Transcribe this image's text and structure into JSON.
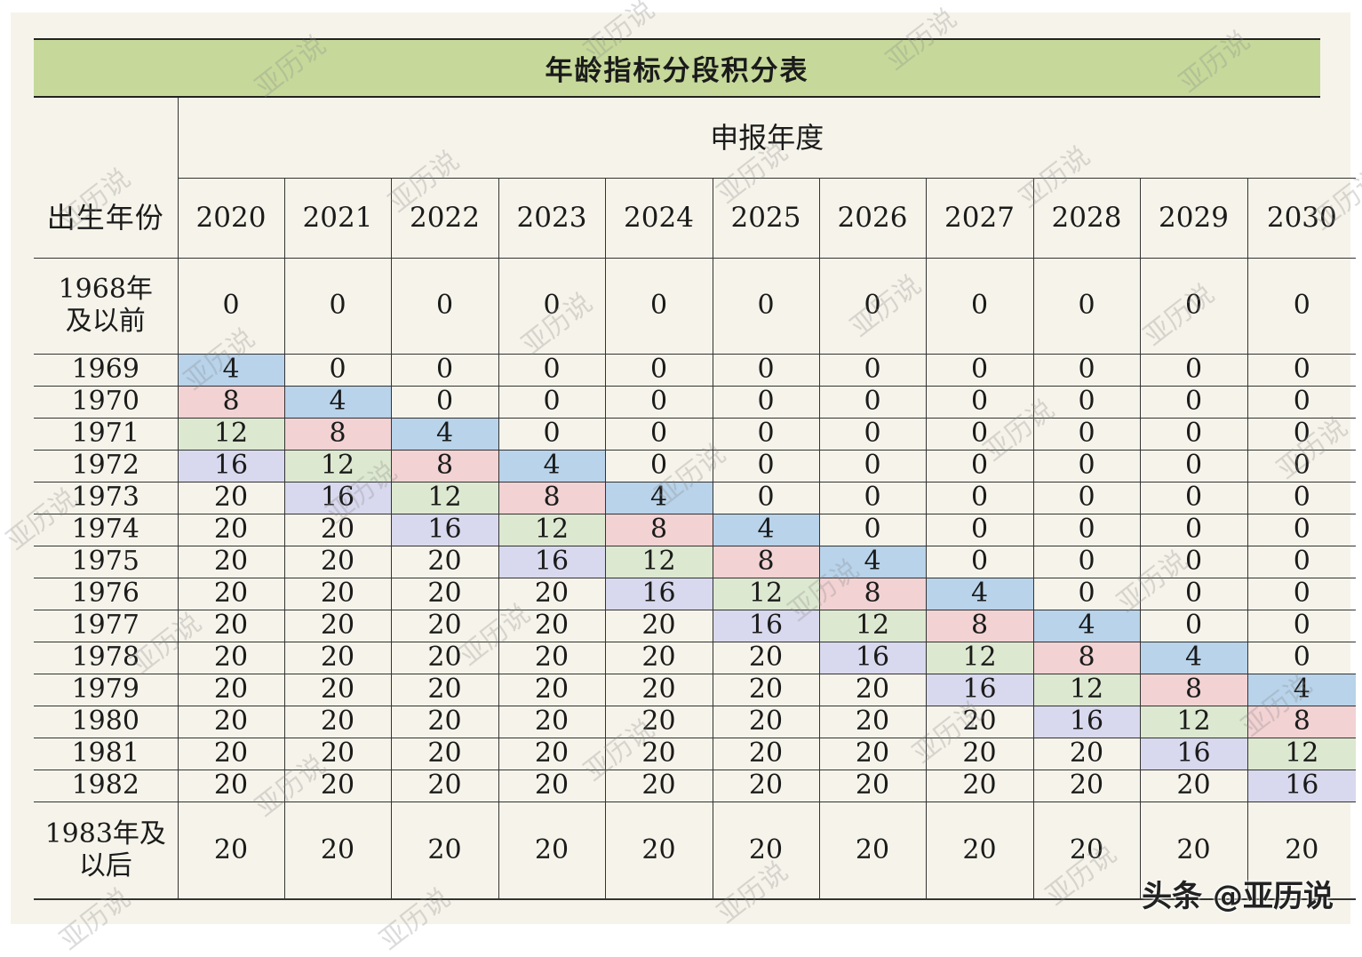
{
  "table": {
    "title": "年龄指标分段积分表",
    "column_group_header": "申报年度",
    "row_header": "出生年份",
    "years": [
      "2020",
      "2021",
      "2022",
      "2023",
      "2024",
      "2025",
      "2026",
      "2027",
      "2028",
      "2029",
      "2030"
    ],
    "rows": [
      {
        "label": "1968年\n及以前",
        "values": [
          0,
          0,
          0,
          0,
          0,
          0,
          0,
          0,
          0,
          0,
          0
        ]
      },
      {
        "label": "1969",
        "values": [
          4,
          0,
          0,
          0,
          0,
          0,
          0,
          0,
          0,
          0,
          0
        ]
      },
      {
        "label": "1970",
        "values": [
          8,
          4,
          0,
          0,
          0,
          0,
          0,
          0,
          0,
          0,
          0
        ]
      },
      {
        "label": "1971",
        "values": [
          12,
          8,
          4,
          0,
          0,
          0,
          0,
          0,
          0,
          0,
          0
        ]
      },
      {
        "label": "1972",
        "values": [
          16,
          12,
          8,
          4,
          0,
          0,
          0,
          0,
          0,
          0,
          0
        ]
      },
      {
        "label": "1973",
        "values": [
          20,
          16,
          12,
          8,
          4,
          0,
          0,
          0,
          0,
          0,
          0
        ]
      },
      {
        "label": "1974",
        "values": [
          20,
          20,
          16,
          12,
          8,
          4,
          0,
          0,
          0,
          0,
          0
        ]
      },
      {
        "label": "1975",
        "values": [
          20,
          20,
          20,
          16,
          12,
          8,
          4,
          0,
          0,
          0,
          0
        ]
      },
      {
        "label": "1976",
        "values": [
          20,
          20,
          20,
          20,
          16,
          12,
          8,
          4,
          0,
          0,
          0
        ]
      },
      {
        "label": "1977",
        "values": [
          20,
          20,
          20,
          20,
          20,
          16,
          12,
          8,
          4,
          0,
          0
        ]
      },
      {
        "label": "1978",
        "values": [
          20,
          20,
          20,
          20,
          20,
          20,
          16,
          12,
          8,
          4,
          0
        ]
      },
      {
        "label": "1979",
        "values": [
          20,
          20,
          20,
          20,
          20,
          20,
          20,
          16,
          12,
          8,
          4
        ]
      },
      {
        "label": "1980",
        "values": [
          20,
          20,
          20,
          20,
          20,
          20,
          20,
          20,
          16,
          12,
          8
        ]
      },
      {
        "label": "1981",
        "values": [
          20,
          20,
          20,
          20,
          20,
          20,
          20,
          20,
          20,
          16,
          12
        ]
      },
      {
        "label": "1982",
        "values": [
          20,
          20,
          20,
          20,
          20,
          20,
          20,
          20,
          20,
          20,
          16
        ]
      },
      {
        "label": "1983年及\n以后",
        "values": [
          20,
          20,
          20,
          20,
          20,
          20,
          20,
          20,
          20,
          20,
          20
        ]
      }
    ]
  },
  "highlight_colors": {
    "4": "#b8d3ea",
    "8": "#f2d2d3",
    "12": "#dde8d0",
    "16": "#d8d8ee"
  },
  "watermark_text": "亚历说",
  "credit": "头条 @亚历说"
}
